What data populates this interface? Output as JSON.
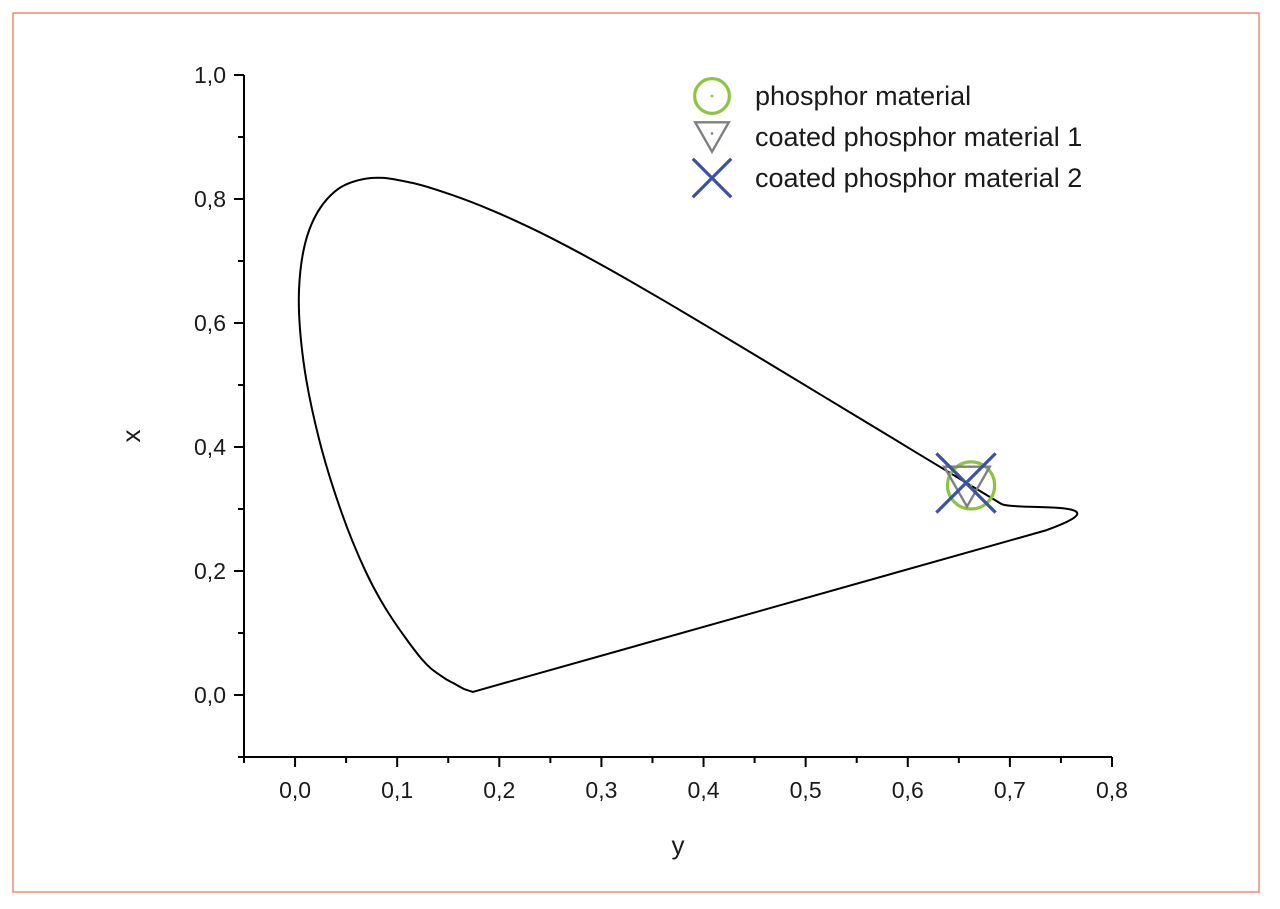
{
  "chart_data": {
    "type": "scatter",
    "title": "",
    "xlabel": "y",
    "ylabel": "x",
    "xlim": [
      -0.05,
      0.8
    ],
    "ylim": [
      -0.1,
      1.0
    ],
    "x_ticks": [
      0.0,
      0.1,
      0.2,
      0.3,
      0.4,
      0.5,
      0.6,
      0.7,
      0.8
    ],
    "x_tick_labels": [
      "0,0",
      "0,1",
      "0,2",
      "0,3",
      "0,4",
      "0,5",
      "0,6",
      "0,7",
      "0,8"
    ],
    "y_ticks": [
      0.0,
      0.2,
      0.4,
      0.6,
      0.8,
      1.0
    ],
    "y_tick_labels": [
      "0,0",
      "0,2",
      "0,4",
      "0,6",
      "0,8",
      "1,0"
    ],
    "grid": false,
    "legend_position": "top-right",
    "outline": {
      "description": "spectral locus with line of purples",
      "color": "#000000",
      "points": [
        [
          0.1741,
          0.005
        ],
        [
          0.1666,
          0.0089
        ],
        [
          0.1566,
          0.0177
        ],
        [
          0.144,
          0.0297
        ],
        [
          0.1241,
          0.0578
        ],
        [
          0.0913,
          0.1327
        ],
        [
          0.0687,
          0.2007
        ],
        [
          0.0454,
          0.295
        ],
        [
          0.0235,
          0.4127
        ],
        [
          0.0082,
          0.5384
        ],
        [
          0.0039,
          0.6548
        ],
        [
          0.0139,
          0.7502
        ],
        [
          0.0389,
          0.812
        ],
        [
          0.0743,
          0.8338
        ],
        [
          0.1142,
          0.8262
        ],
        [
          0.1547,
          0.8059
        ],
        [
          0.1929,
          0.7816
        ],
        [
          0.2296,
          0.7543
        ],
        [
          0.2658,
          0.7243
        ],
        [
          0.3016,
          0.6923
        ],
        [
          0.3373,
          0.6589
        ],
        [
          0.3731,
          0.6245
        ],
        [
          0.4087,
          0.5896
        ],
        [
          0.4441,
          0.5547
        ],
        [
          0.4788,
          0.5202
        ],
        [
          0.5125,
          0.4866
        ],
        [
          0.5448,
          0.4544
        ],
        [
          0.5752,
          0.4242
        ],
        [
          0.6029,
          0.3965
        ],
        [
          0.627,
          0.3725
        ],
        [
          0.6482,
          0.3514
        ],
        [
          0.6658,
          0.334
        ],
        [
          0.6915,
          0.3083
        ],
        [
          0.7347,
          0.2653
        ],
        [
          0.1741,
          0.005
        ]
      ]
    },
    "series": [
      {
        "name": "phosphor material",
        "marker": "circle",
        "color": "#8cc63f",
        "x": [
          0.662
        ],
        "y": [
          0.338
        ]
      },
      {
        "name": "coated phosphor material 1",
        "marker": "triangle-down",
        "color": "#808080",
        "x": [
          0.658
        ],
        "y": [
          0.336
        ]
      },
      {
        "name": "coated phosphor material 2",
        "marker": "x",
        "color": "#3a52a4",
        "x": [
          0.657
        ],
        "y": [
          0.342
        ]
      }
    ]
  },
  "colors": {
    "frame_border": "#f08a70",
    "axis": "#000000"
  }
}
